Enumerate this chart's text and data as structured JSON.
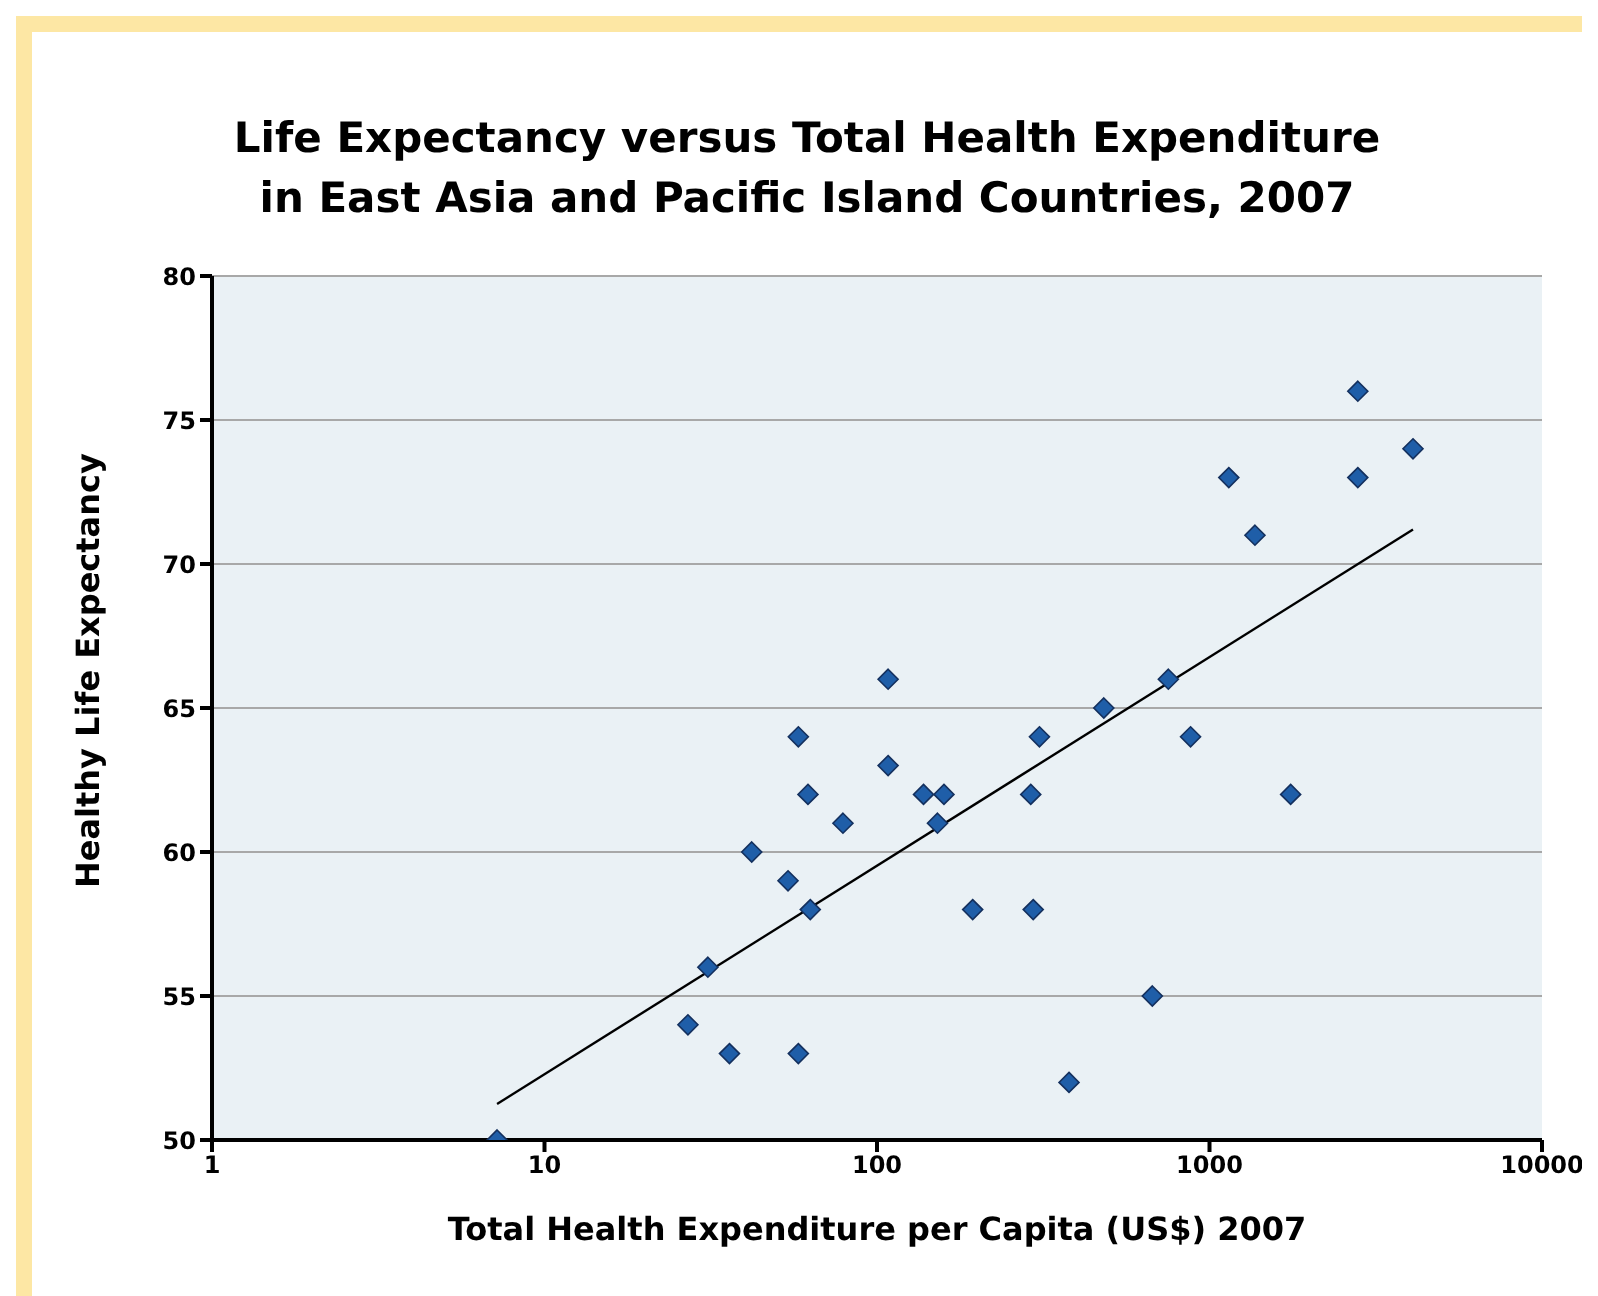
{
  "chart_data": {
    "type": "scatter",
    "title": "Life Expectancy versus Total Health Expenditure\nin East Asia and Pacific Island Countries, 2007",
    "xlabel": "Total Health Expenditure per Capita (US$) 2007",
    "ylabel": "Healthy Life Expectancy",
    "log": "x",
    "xlim": [
      1,
      10000
    ],
    "xticks": [
      1,
      10,
      100,
      1000,
      10000
    ],
    "ylim": [
      50,
      80
    ],
    "yticks": [
      50,
      55,
      60,
      65,
      70,
      75,
      80
    ],
    "grid": "y",
    "marker": "diamond",
    "series": [
      {
        "color": "#1f5ea8",
        "x": [
          7.2,
          27,
          31,
          36,
          42,
          54,
          58,
          58,
          62,
          63,
          79,
          108,
          108,
          138,
          159,
          152,
          194,
          290,
          295,
          308,
          378,
          481,
          673,
          752,
          877,
          1143,
          1370,
          1754,
          2793,
          2793,
          4093
        ],
        "values": [
          50,
          54,
          56,
          53,
          60,
          59,
          64,
          53,
          62,
          58,
          61,
          66,
          63,
          62,
          62,
          61,
          58,
          62,
          58,
          64,
          52,
          65,
          55,
          66,
          64,
          73,
          71,
          62,
          76,
          73,
          74
        ]
      },
      {
        "type": "line",
        "color": "#000000",
        "marker": "none",
        "x": [
          7.2,
          4093
        ],
        "values": [
          51.25,
          71.2
        ]
      }
    ]
  }
}
